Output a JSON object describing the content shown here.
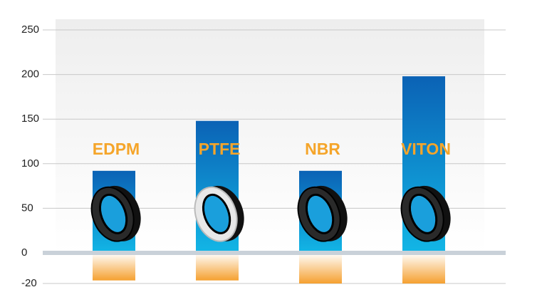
{
  "chart_data": {
    "type": "bar",
    "categories": [
      "EDPM",
      "PTFE",
      "NBR",
      "VITON"
    ],
    "series": [
      {
        "color": "#0b6fbf",
        "values": [
          92,
          148,
          92,
          198
        ]
      },
      {
        "color": "#f5a030",
        "values": [
          -18,
          -18,
          -20,
          -20
        ]
      }
    ],
    "ylim": [
      -20,
      250
    ],
    "yticks": [
      -20,
      0,
      50,
      100,
      150,
      200,
      250
    ],
    "grid": true,
    "label_color": "#f5a52a"
  }
}
